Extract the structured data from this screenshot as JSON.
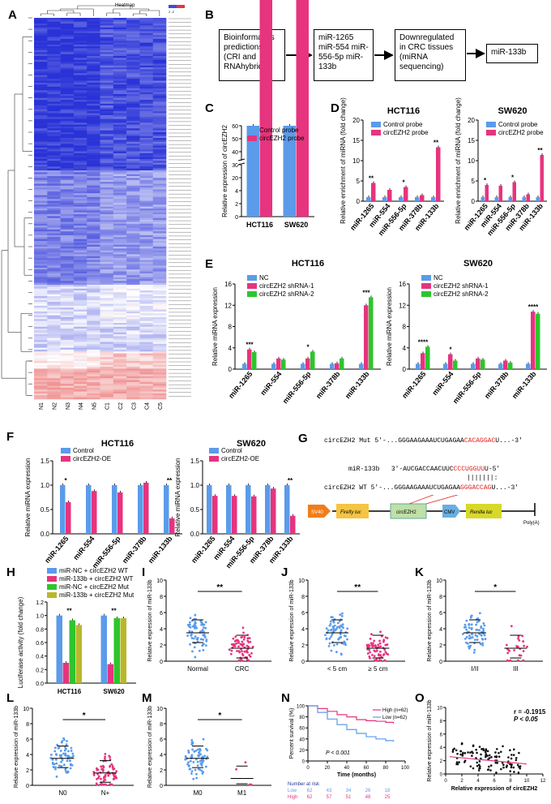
{
  "panels": {
    "A": "A",
    "B": "B",
    "C": "C",
    "D": "D",
    "E": "E",
    "F": "F",
    "G": "G",
    "H": "H",
    "I": "I",
    "J": "J",
    "K": "K",
    "L": "L",
    "M": "M",
    "N": "N",
    "O": "O"
  },
  "colors": {
    "blue": "#5b9bea",
    "pink": "#e6347e",
    "green": "#2dc52d",
    "olive": "#b8b82c",
    "red": "#e0201b"
  },
  "heatmap": {
    "title": "Heatmap",
    "samples": [
      "N1",
      "N2",
      "N3",
      "N4",
      "N5",
      "C1",
      "C2",
      "C3",
      "C4",
      "C5"
    ],
    "scale_label": "2 -2"
  },
  "flow": {
    "box1": "Bioinformatics predictions (CRI and RNAhybrid)",
    "box2": "miR-1265 miR-554 miR-556-5p miR-133b",
    "box3": "Downregulated in CRC tissues (miRNA sequencing)",
    "box4": "miR-133b"
  },
  "chart_data": [
    {
      "panel": "C",
      "type": "bar",
      "ylabel": "Relative expression of circEZH2",
      "categories": [
        "HCT116",
        "SW620"
      ],
      "series": [
        {
          "name": "Control probe",
          "values": [
            1,
            1
          ]
        },
        {
          "name": "circEZH2 probe",
          "values": [
            46,
            48
          ]
        }
      ],
      "yticks": [
        "0",
        "2",
        "4",
        "20",
        "30",
        "40",
        "50",
        "60"
      ],
      "annotations": [
        "**",
        "**"
      ]
    },
    {
      "panel": "D-HCT116",
      "type": "bar",
      "title": "HCT116",
      "ylabel": "Relative enrichment of miRNA (fold change)",
      "categories": [
        "miR-1265",
        "miR-554",
        "miR-556-5p",
        "miR-378b",
        "miR-133b"
      ],
      "series": [
        {
          "name": "Control probe",
          "values": [
            1,
            1,
            1,
            1,
            1
          ]
        },
        {
          "name": "circEZH2 probe",
          "values": [
            4.5,
            2.8,
            3.5,
            1.5,
            13.3
          ]
        }
      ],
      "ylim": [
        0,
        20
      ],
      "yticks": [
        "0",
        "5",
        "10",
        "15",
        "20"
      ],
      "annotations": [
        "**",
        "",
        "*",
        "",
        "**"
      ]
    },
    {
      "panel": "D-SW620",
      "type": "bar",
      "title": "SW620",
      "ylabel": "Relative enrichment of miRNA (fold change)",
      "categories": [
        "miR-1265",
        "miR-554",
        "miR-556-5p",
        "miR-378b",
        "miR-133b"
      ],
      "series": [
        {
          "name": "Control probe",
          "values": [
            1,
            1,
            1,
            1,
            1
          ]
        },
        {
          "name": "circEZH2 probe",
          "values": [
            4.0,
            3.8,
            4.7,
            1.7,
            11.4
          ]
        }
      ],
      "ylim": [
        0,
        20
      ],
      "yticks": [
        "0",
        "5",
        "10",
        "15",
        "20"
      ],
      "annotations": [
        "*",
        "",
        "*",
        "",
        "**"
      ]
    },
    {
      "panel": "E-HCT116",
      "type": "bar",
      "title": "HCT116",
      "ylabel": "Relative miRNA expression",
      "categories": [
        "miR-1265",
        "miR-554",
        "miR-556-5p",
        "miR-378b",
        "miR-133b"
      ],
      "series": [
        {
          "name": "NC",
          "values": [
            1,
            1,
            1,
            1,
            1
          ]
        },
        {
          "name": "circEZH2 shRNA-1",
          "values": [
            3.7,
            2.0,
            2.0,
            1.1,
            12.0
          ]
        },
        {
          "name": "circEZH2 shRNA-2",
          "values": [
            3.2,
            1.8,
            3.3,
            2.0,
            13.5
          ]
        }
      ],
      "ylim": [
        0,
        16
      ],
      "yticks": [
        "0",
        "4",
        "8",
        "12",
        "16"
      ],
      "annotations": [
        "***",
        "",
        "*",
        "",
        "***"
      ]
    },
    {
      "panel": "E-SW620",
      "type": "bar",
      "title": "SW620",
      "ylabel": "Relative miRNA expression",
      "categories": [
        "miR-1265",
        "miR-554",
        "miR-556-5p",
        "miR-378b",
        "miR-133b"
      ],
      "series": [
        {
          "name": "NC",
          "values": [
            1,
            1,
            1,
            1,
            1
          ]
        },
        {
          "name": "circEZH2 shRNA-1",
          "values": [
            3.0,
            2.8,
            2.0,
            1.6,
            10.8
          ]
        },
        {
          "name": "circEZH2 shRNA-2",
          "values": [
            4.2,
            1.6,
            1.8,
            1.2,
            10.4
          ]
        }
      ],
      "ylim": [
        0,
        16
      ],
      "yticks": [
        "0",
        "4",
        "8",
        "12",
        "16"
      ],
      "annotations": [
        "****",
        "*",
        "",
        "",
        "****"
      ]
    },
    {
      "panel": "F-HCT116",
      "type": "bar",
      "title": "HCT116",
      "ylabel": "Relative miRNA expression",
      "categories": [
        "miR-1265",
        "miR-554",
        "miR-556-5p",
        "miR-378b",
        "miR-133b"
      ],
      "series": [
        {
          "name": "Control",
          "values": [
            1,
            1,
            1,
            1,
            1
          ]
        },
        {
          "name": "circEZH2-OE",
          "values": [
            0.65,
            0.88,
            0.85,
            1.05,
            0.32
          ]
        }
      ],
      "ylim": [
        0,
        1.5
      ],
      "yticks": [
        "0.0",
        "0.5",
        "1.0",
        "1.5"
      ],
      "annotations": [
        "*",
        "",
        "",
        "",
        "**"
      ]
    },
    {
      "panel": "F-SW620",
      "type": "bar",
      "title": "SW620",
      "ylabel": "Relative miRNA expression",
      "categories": [
        "miR-1265",
        "miR-554",
        "miR-556-5p",
        "miR-378b",
        "miR-133b"
      ],
      "series": [
        {
          "name": "Control",
          "values": [
            1,
            1,
            1,
            1,
            1
          ]
        },
        {
          "name": "circEZH2-OE",
          "values": [
            0.78,
            0.78,
            0.77,
            0.93,
            0.37
          ]
        }
      ],
      "ylim": [
        0,
        1.5
      ],
      "yticks": [
        "0.0",
        "0.5",
        "1.0",
        "1.5"
      ],
      "annotations": [
        "",
        "",
        "",
        "",
        "**"
      ]
    },
    {
      "panel": "H",
      "type": "bar",
      "ylabel": "Luciferase activity (fold change)",
      "categories": [
        "HCT116",
        "SW620"
      ],
      "series": [
        {
          "name": "miR-NC + circEZH2 WT",
          "values": [
            1,
            1
          ]
        },
        {
          "name": "miR-133b + circEZH2 WT",
          "values": [
            0.3,
            0.28
          ]
        },
        {
          "name": "miR-NC + circEZH2 Mut",
          "values": [
            0.93,
            0.96
          ]
        },
        {
          "name": "miR-133b + circEZH2 Mut",
          "values": [
            0.86,
            0.96
          ]
        }
      ],
      "ylim": [
        0,
        1.2
      ],
      "yticks": [
        "0.0",
        "0.2",
        "0.4",
        "0.6",
        "0.8",
        "1.0",
        "1.2"
      ],
      "annotations": [
        "**",
        "**"
      ]
    },
    {
      "panel": "I",
      "type": "scatter",
      "ylabel": "Relative expression of miR-133b",
      "categories": [
        "Normal",
        "CRC"
      ],
      "ylim": [
        0,
        10
      ],
      "yticks": [
        "0",
        "2",
        "4",
        "6",
        "8",
        "10"
      ],
      "annotations": [
        "**"
      ]
    },
    {
      "panel": "J",
      "type": "scatter",
      "ylabel": "Relative expression of miR-133b",
      "categories": [
        "< 5 cm",
        "≥ 5 cm"
      ],
      "ylim": [
        0,
        10
      ],
      "yticks": [
        "0",
        "2",
        "4",
        "6",
        "8",
        "10"
      ],
      "annotations": [
        "**"
      ]
    },
    {
      "panel": "K",
      "type": "scatter",
      "ylabel": "Relative expression of miR-133b",
      "categories": [
        "I/II",
        "III"
      ],
      "ylim": [
        0,
        10
      ],
      "yticks": [
        "0",
        "2",
        "4",
        "6",
        "8",
        "10"
      ],
      "annotations": [
        "*"
      ]
    },
    {
      "panel": "L",
      "type": "scatter",
      "ylabel": "Relative expression of miR-133b",
      "categories": [
        "N0",
        "N+"
      ],
      "ylim": [
        0,
        10
      ],
      "yticks": [
        "0",
        "2",
        "4",
        "6",
        "8",
        "10"
      ],
      "annotations": [
        "*"
      ]
    },
    {
      "panel": "M",
      "type": "scatter",
      "ylabel": "Relative expression of miR-133b",
      "categories": [
        "M0",
        "M1"
      ],
      "ylim": [
        0,
        10
      ],
      "yticks": [
        "0",
        "2",
        "4",
        "6",
        "8",
        "10"
      ],
      "annotations": [
        "*"
      ]
    },
    {
      "panel": "N",
      "type": "line",
      "ylabel": "Percent survival (%)",
      "xlabel": "Time (months)",
      "xticks": [
        "0",
        "20",
        "40",
        "60",
        "80",
        "100"
      ],
      "yticks": [
        "0",
        "20",
        "40",
        "60",
        "80",
        "100"
      ],
      "series": [
        {
          "name": "High (n=62)",
          "values": [
            100,
            95,
            90,
            84,
            80,
            75,
            73,
            72,
            70,
            68
          ]
        },
        {
          "name": "Low (n=62)",
          "values": [
            100,
            88,
            76,
            66,
            57,
            50,
            44,
            40,
            37,
            35
          ]
        }
      ],
      "x": [
        0,
        10,
        20,
        30,
        40,
        50,
        60,
        70,
        80,
        88
      ],
      "pvalue": "P < 0.001",
      "risk": {
        "title": "Number at risk",
        "low_label": "Low",
        "high_label": "High",
        "low": [
          "62",
          "43",
          "34",
          "26",
          "18"
        ],
        "high": [
          "62",
          "57",
          "51",
          "48",
          "25"
        ]
      }
    },
    {
      "panel": "O",
      "type": "scatter",
      "ylabel": "Relative expression of miR-133b",
      "xlabel": "Relative expression of circEZH2",
      "xticks": [
        "0",
        "2",
        "4",
        "6",
        "8",
        "10",
        "12"
      ],
      "yticks": [
        "0",
        "2",
        "4",
        "6",
        "8",
        "10"
      ],
      "r": "r = -0.1915",
      "p": "P < 0.05"
    }
  ],
  "seq": {
    "mut_label": "circEZH2 Mut",
    "mut_prefix": "5'-...GGGAAGAAAUCUGAGAA",
    "mut_red": "CACAGGAC",
    "mut_suffix": "U...-3'",
    "mir_label": "miR-133b",
    "mir_prefix": "3'-AUCGACCAACUUC",
    "mir_red": "CCCUGGUU",
    "mir_suffix": "U-5'",
    "wt_label": "circEZH2 WT",
    "wt_prefix": "5'-...GGGAAGAAAUCUGAGAA",
    "wt_red": "GGGACCAG",
    "wt_suffix": "U...-3'",
    "pairs": "|||||||:",
    "construct": [
      "SV40",
      "Firefly luc",
      "circEZH2",
      "CMV",
      "Renilla luc",
      "Poly(A)"
    ]
  }
}
